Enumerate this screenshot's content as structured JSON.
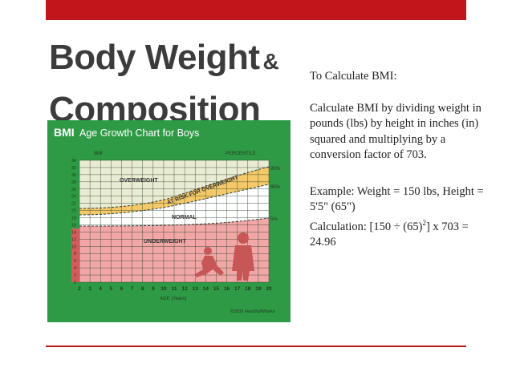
{
  "slide": {
    "title_line1": "Body Weight",
    "title_amp": "&",
    "title_line2": "Composition"
  },
  "content": {
    "heading": "To Calculate BMI:",
    "description": "Calculate BMI by dividing weight in pounds (lbs) by height in inches (in) squared and multiplying by a conversion factor of 703.",
    "example": "Example: Weight = 150 lbs, Height = 5'5\" (65\")",
    "calculation_prefix": "Calculation: [150 ÷ (65)",
    "calculation_exp": "2",
    "calculation_suffix": "] x 703 = 24.96"
  },
  "figure": {
    "header_bold": "BMI",
    "header_text": "Age Growth Chart for Boys",
    "y_label": "BMI",
    "percentile_label": "PERCENTILE",
    "p95": "95%",
    "p85": "85%",
    "p5": "5%",
    "zone_overweight": "OVERWEIGHT",
    "zone_at_risk": "AT RISK FOR OVERWEIGHT",
    "zone_normal": "NORMAL",
    "zone_underweight": "UNDERWEIGHT",
    "x_label": "AGE (Years)",
    "credit": "©2005 HowStuffWorks",
    "y_ticks": [
      "34",
      "32",
      "30",
      "28",
      "26",
      "24",
      "22",
      "20",
      "18",
      "16",
      "14",
      "12",
      "10",
      "8",
      "6",
      "4",
      "2",
      "0"
    ],
    "x_ticks": [
      "2",
      "3",
      "4",
      "5",
      "6",
      "7",
      "8",
      "9",
      "10",
      "11",
      "12",
      "13",
      "14",
      "15",
      "16",
      "17",
      "18",
      "19",
      "20"
    ],
    "colors": {
      "frame": "#2f9a46",
      "overweight": "#e9ecd3",
      "at_risk": "#f5c96a",
      "normal": "#ffffff",
      "underweight": "#f2a7a7",
      "axis_band": "#d65c5c"
    }
  }
}
